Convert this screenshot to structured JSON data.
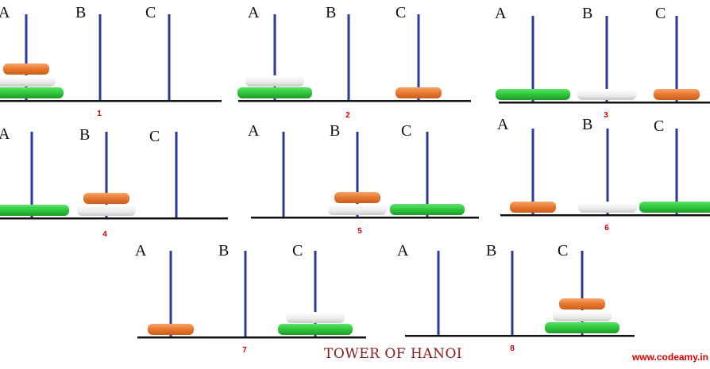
{
  "title": "TOWER OF HANOI",
  "credit": "www.codeamy.in",
  "peg_labels": [
    "A",
    "B",
    "C"
  ],
  "colors": {
    "peg": "#2b3a9a",
    "base": "#111111",
    "step_number": "#d40000",
    "disk_small": "#e8772e",
    "disk_medium": "#ececec",
    "disk_large": "#2fc73b"
  },
  "steps": [
    {
      "number": "1",
      "pegs": {
        "A": [
          "large",
          "medium",
          "small"
        ],
        "B": [],
        "C": []
      }
    },
    {
      "number": "2",
      "pegs": {
        "A": [
          "large",
          "medium"
        ],
        "B": [],
        "C": [
          "small"
        ]
      }
    },
    {
      "number": "3",
      "pegs": {
        "A": [
          "large"
        ],
        "B": [
          "medium"
        ],
        "C": [
          "small"
        ]
      }
    },
    {
      "number": "4",
      "pegs": {
        "A": [
          "large"
        ],
        "B": [
          "medium",
          "small"
        ],
        "C": []
      }
    },
    {
      "number": "5",
      "pegs": {
        "A": [],
        "B": [
          "medium",
          "small"
        ],
        "C": [
          "large"
        ]
      }
    },
    {
      "number": "6",
      "pegs": {
        "A": [
          "small"
        ],
        "B": [
          "medium"
        ],
        "C": [
          "large"
        ]
      }
    },
    {
      "number": "7",
      "pegs": {
        "A": [
          "small"
        ],
        "B": [],
        "C": [
          "large",
          "medium"
        ]
      }
    },
    {
      "number": "8",
      "pegs": {
        "A": [],
        "B": [],
        "C": [
          "large",
          "medium",
          "small"
        ]
      }
    }
  ]
}
